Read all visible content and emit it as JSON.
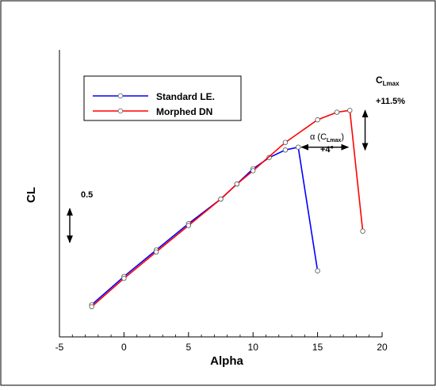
{
  "chart_data": {
    "type": "line",
    "title": "",
    "xlabel": "Alpha",
    "ylabel": "CL",
    "xlim": [
      -5,
      20
    ],
    "ylim": [
      -0.12,
      1.4
    ],
    "y_axis_ticks_shown": false,
    "x_ticks": [
      -5,
      0,
      5,
      10,
      15,
      20
    ],
    "x_tick_labels": [
      "-5",
      "0",
      "5",
      "10",
      "15",
      "20"
    ],
    "grid": false,
    "legend_position": "top-left",
    "series": [
      {
        "name": "Standard LE.",
        "color": "#0000ff",
        "marker": "circle",
        "x": [
          -2.5,
          0,
          2.5,
          5,
          7.5,
          8.75,
          10,
          11.25,
          12.5,
          13.5,
          15
        ],
        "y": [
          0.05,
          0.2,
          0.34,
          0.48,
          0.61,
          0.69,
          0.77,
          0.83,
          0.87,
          0.885,
          0.23
        ]
      },
      {
        "name": "Morphed DN",
        "color": "#ff0000",
        "marker": "circle",
        "x": [
          -2.5,
          0,
          2.5,
          5,
          7.5,
          8.75,
          10,
          12.5,
          15,
          16.5,
          17.5,
          18.5
        ],
        "y": [
          0.04,
          0.19,
          0.33,
          0.47,
          0.61,
          0.69,
          0.76,
          0.91,
          1.03,
          1.07,
          1.08,
          0.44
        ]
      }
    ],
    "annotations": {
      "scale_bar": {
        "label": "0.5",
        "from_y": 0.56,
        "to_y": 0.38,
        "x": -4.2
      },
      "cl_max": {
        "title": "C",
        "subscript": "Lmax",
        "change": "+11.5%",
        "x": 18.5,
        "from_y": 0.87,
        "to_y": 1.08
      },
      "alpha_shift": {
        "prefix": "α (C",
        "subscript": "Lmax",
        "suffix": ")",
        "change": "+4°",
        "from_x": 13.5,
        "to_x": 17.5,
        "y": 0.885
      }
    }
  }
}
